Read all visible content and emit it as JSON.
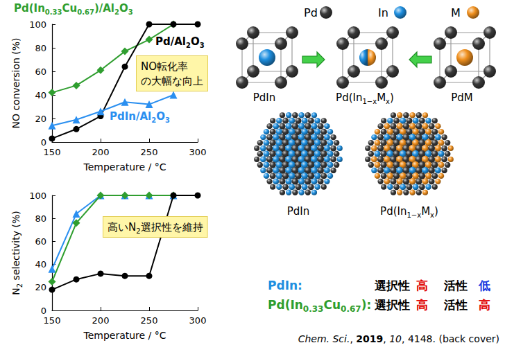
{
  "chart_data": [
    {
      "type": "line",
      "x_label": "Temperature / °C",
      "y_label": "NO conversion (%)",
      "x": [
        150,
        175,
        200,
        225,
        250,
        275,
        300
      ],
      "xlim": [
        150,
        300
      ],
      "xticks": [
        150,
        200,
        250,
        300
      ],
      "ylim": [
        0,
        100
      ],
      "yticks": [
        0,
        20,
        40,
        60,
        80,
        100
      ],
      "grid": false,
      "annotations": [
        {
          "lines": [
            "NO転化率",
            "の大幅な向上"
          ]
        }
      ],
      "series": [
        {
          "name": "Pd(In0.33Cu0.67)/Al2O3",
          "color": "#2f9e2f",
          "marker": "diamond",
          "line_style": "solid",
          "values": [
            42,
            48,
            61,
            77,
            87,
            100,
            null
          ]
        },
        {
          "name": "Pd/Al2O3",
          "color": "#000000",
          "marker": "circle",
          "line_style": "solid",
          "values": [
            3,
            11,
            22,
            64,
            100,
            100,
            100
          ]
        },
        {
          "name": "PdIn/Al2O3",
          "color": "#2a8ff0",
          "marker": "triangle",
          "line_style": "solid",
          "values": [
            14,
            19,
            26,
            34,
            32,
            40,
            null
          ]
        }
      ]
    },
    {
      "type": "line",
      "x_label": "Temperature / °C",
      "y_label": "N2 selectivity (%)",
      "x": [
        150,
        175,
        200,
        225,
        250,
        275,
        300
      ],
      "xlim": [
        150,
        300
      ],
      "xticks": [
        150,
        200,
        250,
        300
      ],
      "ylim": [
        0,
        100
      ],
      "yticks": [
        0,
        20,
        40,
        60,
        80,
        100
      ],
      "grid": false,
      "annotations": [
        {
          "lines": [
            "高いN2選択性を維持"
          ]
        }
      ],
      "series": [
        {
          "color": "#2a8ff0",
          "marker": "triangle",
          "line_style": "solid",
          "values": [
            36,
            84,
            100,
            100,
            100,
            100,
            null
          ]
        },
        {
          "color": "#2f9e2f",
          "marker": "diamond",
          "line_style": "solid",
          "values": [
            25,
            76,
            100,
            100,
            100,
            100,
            null
          ]
        },
        {
          "color": "#000000",
          "marker": "circle",
          "line_style": "solid",
          "values": [
            18,
            27,
            32,
            30,
            30,
            100,
            100
          ]
        }
      ]
    }
  ],
  "diagram": {
    "legend": [
      {
        "label": "Pd",
        "color": "#3a3a3a"
      },
      {
        "label": "In",
        "color": "#1e8fe0"
      },
      {
        "label": "M",
        "color": "#f0901e"
      }
    ],
    "structures": [
      "PdIn",
      "Pd(In1−xMx)",
      "PdM"
    ],
    "particles": [
      "PdIn",
      "Pd(In1−xMx)"
    ],
    "comparison": [
      {
        "name": "PdIn:",
        "color": "#1e8fe0",
        "cells": [
          {
            "text": "選択性",
            "color": "#000000"
          },
          {
            "text": "高",
            "color": "#e00000"
          },
          {
            "text": "活性",
            "color": "#000000"
          },
          {
            "text": "低",
            "color": "#1a3adf"
          }
        ]
      },
      {
        "name": "Pd(In0.33Cu0.67):",
        "color": "#2f9e2f",
        "cells": [
          {
            "text": "選択性",
            "color": "#000000"
          },
          {
            "text": "高",
            "color": "#e00000"
          },
          {
            "text": "活性",
            "color": "#000000"
          },
          {
            "text": "高",
            "color": "#e00000"
          }
        ]
      }
    ],
    "citation": [
      {
        "text": "Chem. Sci.",
        "font": "italic"
      },
      {
        "text": ", ",
        "font": "normal"
      },
      {
        "text": "2019",
        "font": "bold"
      },
      {
        "text": ", ",
        "font": "normal"
      },
      {
        "text": "10",
        "font": "italic"
      },
      {
        "text": ", 4148. (back cover)",
        "font": "normal"
      }
    ]
  }
}
